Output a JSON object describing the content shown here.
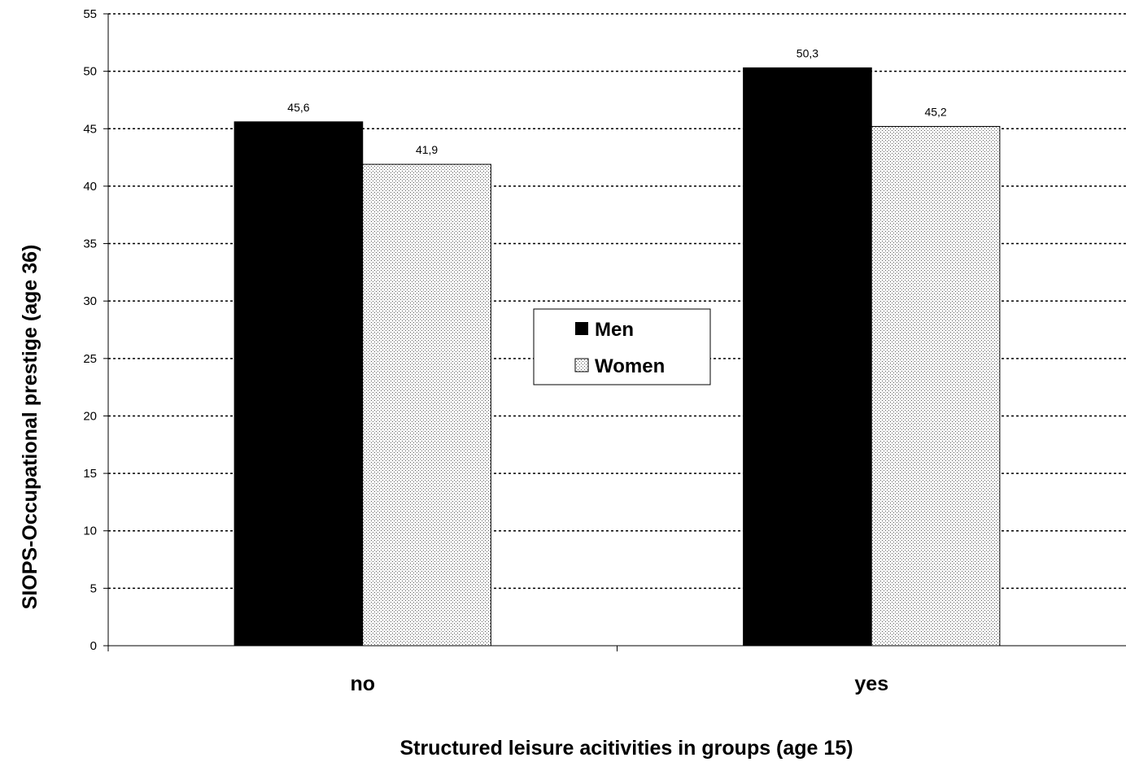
{
  "chart_data": {
    "type": "bar",
    "categories": [
      "no",
      "yes"
    ],
    "series": [
      {
        "name": "Men",
        "values": [
          45.6,
          50.3
        ],
        "labels": [
          "45,6",
          "50,3"
        ],
        "fill": "solid",
        "color": "#000000"
      },
      {
        "name": "Women",
        "values": [
          41.9,
          45.2
        ],
        "labels": [
          "41,9",
          "45,2"
        ],
        "fill": "dotted",
        "color": "#c8c8c8"
      }
    ],
    "xlabel": "Structured leisure acitivities in groups (age 15)",
    "ylabel": "SIOPS-Occupational prestige (age 36)",
    "ylim": [
      0,
      55
    ],
    "yticks": [
      "0",
      "5",
      "10",
      "15",
      "20",
      "25",
      "30",
      "35",
      "40",
      "45",
      "50",
      "55"
    ],
    "grid": "horizontal dotted",
    "legend": "center"
  }
}
